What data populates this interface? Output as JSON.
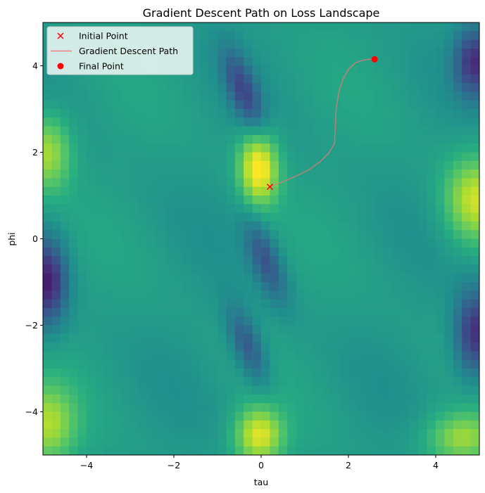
{
  "chart_data": {
    "type": "heatmap",
    "title": "Gradient Descent Path on Loss Landscape",
    "xlabel": "tau",
    "ylabel": "phi",
    "xlim": [
      -5,
      5
    ],
    "ylim": [
      -5,
      5
    ],
    "xticks": [
      "−4",
      "−2",
      "0",
      "2",
      "4"
    ],
    "yticks": [
      "−4",
      "−2",
      "0",
      "2",
      "4"
    ],
    "xtick_values": [
      -4,
      -2,
      0,
      2,
      4
    ],
    "ytick_values": [
      -4,
      -2,
      0,
      2,
      4
    ],
    "colormap": "viridis",
    "grid": false,
    "legend_position": "top-left",
    "legend": [
      {
        "label": "Initial Point",
        "marker": "x",
        "color": "#ff0000"
      },
      {
        "label": "Gradient Descent Path",
        "marker": "line",
        "color": "#f08080"
      },
      {
        "label": "Final Point",
        "marker": "o",
        "color": "#ff0000"
      }
    ],
    "initial_point": {
      "x": 0.2,
      "y": 1.2
    },
    "final_point": {
      "x": 2.6,
      "y": 4.15
    },
    "path": {
      "x": [
        0.2,
        0.5,
        0.8,
        1.1,
        1.35,
        1.55,
        1.68,
        1.7,
        1.72,
        1.78,
        1.88,
        2.0,
        2.15,
        2.3,
        2.45,
        2.6
      ],
      "y": [
        1.2,
        1.32,
        1.45,
        1.6,
        1.78,
        1.98,
        2.2,
        2.6,
        3.0,
        3.4,
        3.7,
        3.92,
        4.06,
        4.12,
        4.15,
        4.15
      ]
    }
  }
}
